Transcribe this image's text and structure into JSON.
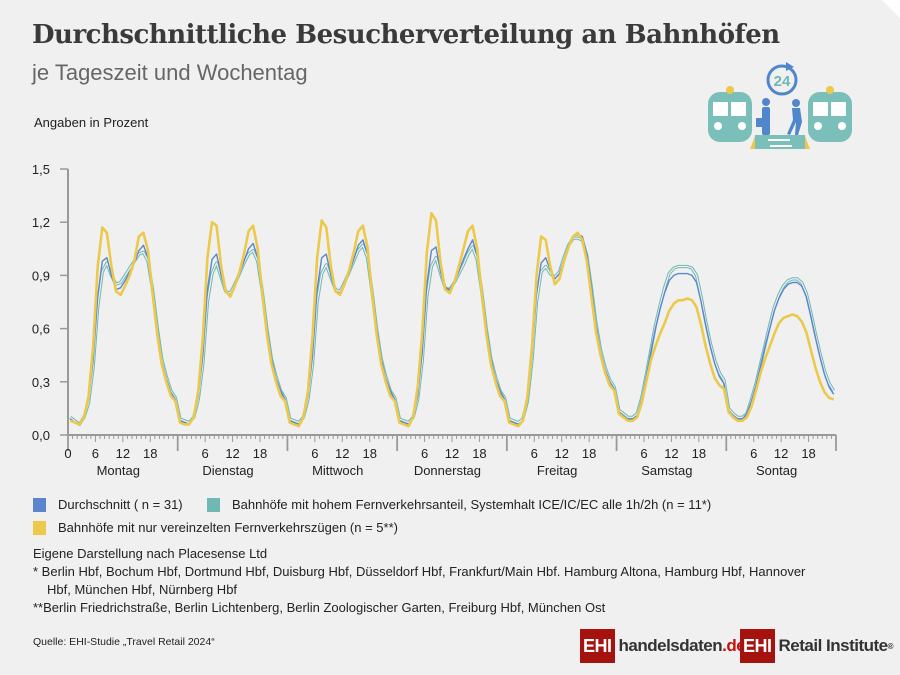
{
  "header": {
    "title": "Durchschnittliche Besucherverteilung an Bahnhöfen",
    "subtitle": "je Tageszeit und Wochentag",
    "unit_label": "Angaben in Prozent"
  },
  "chart_data": {
    "type": "line",
    "ylim": [
      0,
      1.5
    ],
    "y_ticks": [
      "0,0",
      "0,3",
      "0,6",
      "0,9",
      "1,2",
      "1,5"
    ],
    "x_hour_ticks": [
      "0",
      "6",
      "12",
      "18"
    ],
    "days": [
      "Montag",
      "Dienstag",
      "Mittwoch",
      "Donnerstag",
      "Freitag",
      "Samstag",
      "Sontag"
    ],
    "x_unit": "hour of day (0-23) per weekday",
    "series": [
      {
        "name": "Bahnhöfe mit hohem Fernverkehrsanteil, Systemhalt ICE/IC/EC alle 1h/2h (n = 11*)",
        "color": "#6fb9b4",
        "values": [
          [
            0.1,
            0.08,
            0.06,
            0.1,
            0.18,
            0.38,
            0.72,
            0.92,
            0.97,
            0.9,
            0.85,
            0.86,
            0.9,
            0.94,
            0.98,
            1.02,
            1.03,
            0.98,
            0.82,
            0.61,
            0.43,
            0.33,
            0.25,
            0.21
          ],
          [
            0.09,
            0.08,
            0.07,
            0.1,
            0.2,
            0.4,
            0.75,
            0.91,
            0.97,
            0.89,
            0.81,
            0.8,
            0.85,
            0.91,
            0.97,
            1.02,
            1.04,
            0.98,
            0.81,
            0.6,
            0.43,
            0.33,
            0.25,
            0.21
          ],
          [
            0.09,
            0.08,
            0.07,
            0.1,
            0.2,
            0.4,
            0.75,
            0.91,
            0.96,
            0.89,
            0.82,
            0.81,
            0.86,
            0.92,
            0.98,
            1.04,
            1.07,
            1.0,
            0.81,
            0.6,
            0.43,
            0.33,
            0.25,
            0.21
          ],
          [
            0.09,
            0.08,
            0.07,
            0.1,
            0.2,
            0.42,
            0.78,
            0.95,
            1.0,
            0.91,
            0.83,
            0.82,
            0.86,
            0.91,
            0.96,
            1.02,
            1.06,
            0.99,
            0.81,
            0.6,
            0.43,
            0.33,
            0.25,
            0.21
          ],
          [
            0.09,
            0.08,
            0.07,
            0.09,
            0.19,
            0.42,
            0.75,
            0.92,
            0.95,
            0.91,
            0.89,
            0.92,
            1.0,
            1.07,
            1.11,
            1.11,
            1.1,
            1.01,
            0.83,
            0.63,
            0.48,
            0.38,
            0.31,
            0.27
          ],
          [
            0.14,
            0.12,
            0.1,
            0.1,
            0.12,
            0.21,
            0.34,
            0.48,
            0.62,
            0.73,
            0.83,
            0.91,
            0.94,
            0.95,
            0.95,
            0.95,
            0.94,
            0.9,
            0.78,
            0.64,
            0.52,
            0.42,
            0.35,
            0.31
          ],
          [
            0.15,
            0.12,
            0.1,
            0.1,
            0.12,
            0.2,
            0.29,
            0.4,
            0.51,
            0.62,
            0.72,
            0.79,
            0.84,
            0.87,
            0.88,
            0.88,
            0.86,
            0.8,
            0.69,
            0.57,
            0.46,
            0.36,
            0.29,
            0.25
          ]
        ]
      },
      {
        "name": "Durchschnitt ( n = 31)",
        "color": "#5b86cc",
        "values": [
          [
            0.09,
            0.07,
            0.06,
            0.1,
            0.2,
            0.42,
            0.78,
            0.98,
            1.0,
            0.9,
            0.82,
            0.83,
            0.87,
            0.92,
            0.97,
            1.04,
            1.07,
            1.0,
            0.82,
            0.6,
            0.42,
            0.32,
            0.24,
            0.2
          ],
          [
            0.08,
            0.07,
            0.06,
            0.1,
            0.22,
            0.45,
            0.82,
            0.99,
            1.02,
            0.9,
            0.81,
            0.79,
            0.84,
            0.91,
            0.98,
            1.05,
            1.08,
            1.0,
            0.82,
            0.6,
            0.43,
            0.32,
            0.25,
            0.2
          ],
          [
            0.08,
            0.07,
            0.06,
            0.1,
            0.22,
            0.45,
            0.82,
            1.0,
            1.02,
            0.9,
            0.81,
            0.8,
            0.85,
            0.92,
            0.99,
            1.07,
            1.1,
            1.02,
            0.82,
            0.6,
            0.43,
            0.32,
            0.25,
            0.2
          ],
          [
            0.08,
            0.07,
            0.06,
            0.1,
            0.22,
            0.47,
            0.85,
            1.04,
            1.06,
            0.92,
            0.83,
            0.82,
            0.86,
            0.92,
            0.99,
            1.05,
            1.1,
            1.01,
            0.82,
            0.6,
            0.43,
            0.32,
            0.25,
            0.2
          ],
          [
            0.08,
            0.07,
            0.06,
            0.08,
            0.2,
            0.45,
            0.8,
            0.97,
            1.0,
            0.93,
            0.88,
            0.91,
            0.99,
            1.07,
            1.12,
            1.13,
            1.12,
            1.02,
            0.83,
            0.62,
            0.47,
            0.37,
            0.3,
            0.26
          ],
          [
            0.13,
            0.11,
            0.09,
            0.09,
            0.11,
            0.2,
            0.33,
            0.47,
            0.6,
            0.71,
            0.8,
            0.87,
            0.9,
            0.91,
            0.91,
            0.91,
            0.9,
            0.86,
            0.75,
            0.62,
            0.5,
            0.4,
            0.33,
            0.29
          ],
          [
            0.14,
            0.11,
            0.09,
            0.09,
            0.12,
            0.19,
            0.28,
            0.39,
            0.5,
            0.6,
            0.7,
            0.77,
            0.82,
            0.85,
            0.86,
            0.86,
            0.84,
            0.78,
            0.67,
            0.55,
            0.44,
            0.34,
            0.27,
            0.23
          ]
        ]
      },
      {
        "name": "Bahnhöfe mit nur vereinzelten Fernverkehrszügen (n = 5**)",
        "color": "#ecc94b",
        "values": [
          [
            0.08,
            0.07,
            0.06,
            0.1,
            0.22,
            0.5,
            0.95,
            1.17,
            1.14,
            0.95,
            0.81,
            0.79,
            0.84,
            0.9,
            0.98,
            1.12,
            1.14,
            1.04,
            0.8,
            0.57,
            0.4,
            0.3,
            0.22,
            0.19
          ],
          [
            0.07,
            0.06,
            0.06,
            0.1,
            0.25,
            0.55,
            1.0,
            1.2,
            1.18,
            0.95,
            0.81,
            0.78,
            0.84,
            0.92,
            1.02,
            1.15,
            1.18,
            1.05,
            0.8,
            0.57,
            0.4,
            0.3,
            0.22,
            0.19
          ],
          [
            0.07,
            0.06,
            0.05,
            0.1,
            0.25,
            0.56,
            1.0,
            1.21,
            1.17,
            0.95,
            0.81,
            0.79,
            0.85,
            0.93,
            1.03,
            1.15,
            1.18,
            1.06,
            0.8,
            0.57,
            0.4,
            0.3,
            0.22,
            0.19
          ],
          [
            0.07,
            0.06,
            0.05,
            0.1,
            0.27,
            0.58,
            1.03,
            1.25,
            1.21,
            0.97,
            0.82,
            0.8,
            0.86,
            0.95,
            1.05,
            1.15,
            1.18,
            1.05,
            0.8,
            0.57,
            0.4,
            0.3,
            0.22,
            0.19
          ],
          [
            0.07,
            0.06,
            0.05,
            0.08,
            0.22,
            0.5,
            0.9,
            1.12,
            1.1,
            0.95,
            0.85,
            0.88,
            0.98,
            1.06,
            1.12,
            1.14,
            1.1,
            0.98,
            0.78,
            0.58,
            0.45,
            0.35,
            0.28,
            0.25
          ],
          [
            0.12,
            0.1,
            0.08,
            0.08,
            0.1,
            0.18,
            0.3,
            0.42,
            0.5,
            0.57,
            0.63,
            0.7,
            0.74,
            0.76,
            0.76,
            0.77,
            0.76,
            0.72,
            0.62,
            0.5,
            0.4,
            0.32,
            0.28,
            0.26
          ],
          [
            0.13,
            0.1,
            0.08,
            0.08,
            0.1,
            0.16,
            0.25,
            0.35,
            0.43,
            0.5,
            0.57,
            0.63,
            0.66,
            0.67,
            0.68,
            0.67,
            0.64,
            0.58,
            0.48,
            0.38,
            0.3,
            0.24,
            0.21,
            0.2
          ]
        ]
      }
    ],
    "grid": false,
    "legend_position": "bottom"
  },
  "legend": {
    "items": [
      {
        "label": "Durchschnitt ( n = 31)",
        "color": "#5b86cc"
      },
      {
        "label": "Bahnhöfe mit hohem Fernverkehrsanteil, Systemhalt ICE/IC/EC alle 1h/2h (n = 11*)",
        "color": "#6fb9b4"
      },
      {
        "label": "Bahnhöfe mit nur vereinzelten Fernverkehrszügen (n = 5**)",
        "color": "#ecc94b"
      }
    ]
  },
  "notes": {
    "line1": "Eigene Darstellung nach Placesense Ltd",
    "star1a": "*   Berlin Hbf, Bochum Hbf, Dortmund Hbf, Duisburg Hbf, Düsseldorf Hbf, Frankfurt/Main Hbf. Hamburg Altona, Hamburg Hbf, Hannover",
    "star1b": "Hbf, München Hbf, Nürnberg Hbf",
    "star2": "**Berlin Friedrichstraße, Berlin Lichtenberg, Berlin Zoologischer Garten, Freiburg Hbf, München Ost"
  },
  "footer": {
    "source": "Quelle: EHI-Studie „Travel Retail 2024“",
    "logo1_box": "EHI",
    "logo1_text": "handelsdaten",
    "logo1_tld": ".de",
    "logo2_box": "EHI",
    "logo2_text": "Retail Institute",
    "logo2_mark": "®"
  },
  "illustration": {
    "clock_label": "24",
    "icon": "trains-platform-24h-icon"
  }
}
